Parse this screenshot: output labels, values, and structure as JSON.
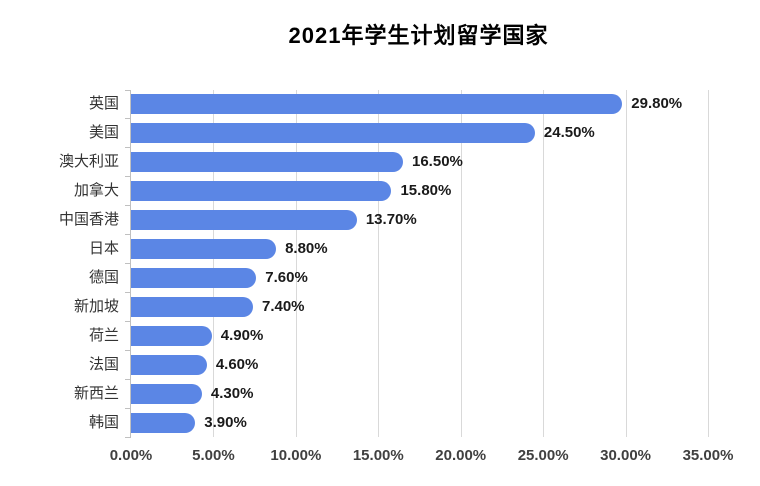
{
  "chart_data": {
    "type": "bar",
    "orientation": "horizontal",
    "title": "2021年学生计划留学国家",
    "categories": [
      "英国",
      "美国",
      "澳大利亚",
      "加拿大",
      "中国香港",
      "日本",
      "德国",
      "新加坡",
      "荷兰",
      "法国",
      "新西兰",
      "韩国"
    ],
    "values": [
      29.8,
      24.5,
      16.5,
      15.8,
      13.7,
      8.8,
      7.6,
      7.4,
      4.9,
      4.6,
      4.3,
      3.9
    ],
    "value_labels": [
      "29.80%",
      "24.50%",
      "16.50%",
      "15.80%",
      "13.70%",
      "8.80%",
      "7.60%",
      "7.40%",
      "4.90%",
      "4.60%",
      "4.30%",
      "3.90%"
    ],
    "x_axis": {
      "min": 0,
      "max": 35,
      "ticks": [
        0,
        5,
        10,
        15,
        20,
        25,
        30,
        35
      ],
      "tick_labels": [
        "0.00%",
        "5.00%",
        "10.00%",
        "15.00%",
        "20.00%",
        "25.00%",
        "30.00%",
        "35.00%"
      ]
    },
    "legend": "none",
    "grid": "vertical",
    "colors": {
      "bar": "#5b86e5",
      "gridline": "#d9d9d9",
      "axis_line": "#c0c0c0",
      "category_label": "#333333",
      "value_label": "#1a1a1a",
      "tick_label": "#404040",
      "title": "#000000",
      "background": "#ffffff"
    }
  }
}
